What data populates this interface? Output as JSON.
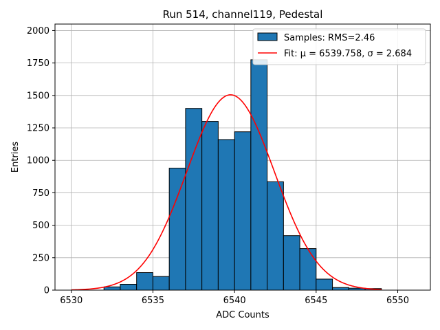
{
  "chart_data": {
    "type": "bar",
    "title": "Run 514, channel119, Pedestal",
    "xlabel": "ADC Counts",
    "ylabel": "Entries",
    "xlim": [
      6529,
      6552
    ],
    "ylim": [
      0,
      2050
    ],
    "grid": true,
    "legend_position": "top-right",
    "x_ticks": [
      6530,
      6535,
      6540,
      6545,
      6550
    ],
    "x_tick_labels": [
      "6530",
      "6535",
      "6540",
      "6545",
      "6550"
    ],
    "y_ticks": [
      0,
      250,
      500,
      750,
      1000,
      1250,
      1500,
      1750,
      2000
    ],
    "y_tick_labels": [
      "0",
      "250",
      "500",
      "750",
      "1000",
      "1250",
      "1500",
      "1750",
      "2000"
    ],
    "bins": [
      {
        "x0": 6532,
        "x1": 6533,
        "value": 25
      },
      {
        "x0": 6533,
        "x1": 6534,
        "value": 45
      },
      {
        "x0": 6534,
        "x1": 6535,
        "value": 135
      },
      {
        "x0": 6535,
        "x1": 6536,
        "value": 105
      },
      {
        "x0": 6536,
        "x1": 6537,
        "value": 940
      },
      {
        "x0": 6537,
        "x1": 6538,
        "value": 1400
      },
      {
        "x0": 6538,
        "x1": 6539,
        "value": 1300
      },
      {
        "x0": 6539,
        "x1": 6540,
        "value": 1160
      },
      {
        "x0": 6540,
        "x1": 6541,
        "value": 1220
      },
      {
        "x0": 6541,
        "x1": 6542,
        "value": 1775
      },
      {
        "x0": 6542,
        "x1": 6543,
        "value": 835
      },
      {
        "x0": 6543,
        "x1": 6544,
        "value": 420
      },
      {
        "x0": 6544,
        "x1": 6545,
        "value": 320
      },
      {
        "x0": 6545,
        "x1": 6546,
        "value": 85
      },
      {
        "x0": 6546,
        "x1": 6547,
        "value": 20
      },
      {
        "x0": 6547,
        "x1": 6548,
        "value": 15
      },
      {
        "x0": 6548,
        "x1": 6549,
        "value": 12
      }
    ],
    "fit": {
      "mu": 6539.758,
      "sigma": 2.684,
      "amplitude": 1505,
      "x_range": [
        6530,
        6549
      ]
    },
    "series": [
      {
        "name": "Samples: RMS=2.46",
        "kind": "histogram",
        "color": "#1f77b4"
      },
      {
        "name": "Fit: μ = 6539.758, σ = 2.684",
        "kind": "line",
        "color": "#ff0000"
      }
    ]
  }
}
